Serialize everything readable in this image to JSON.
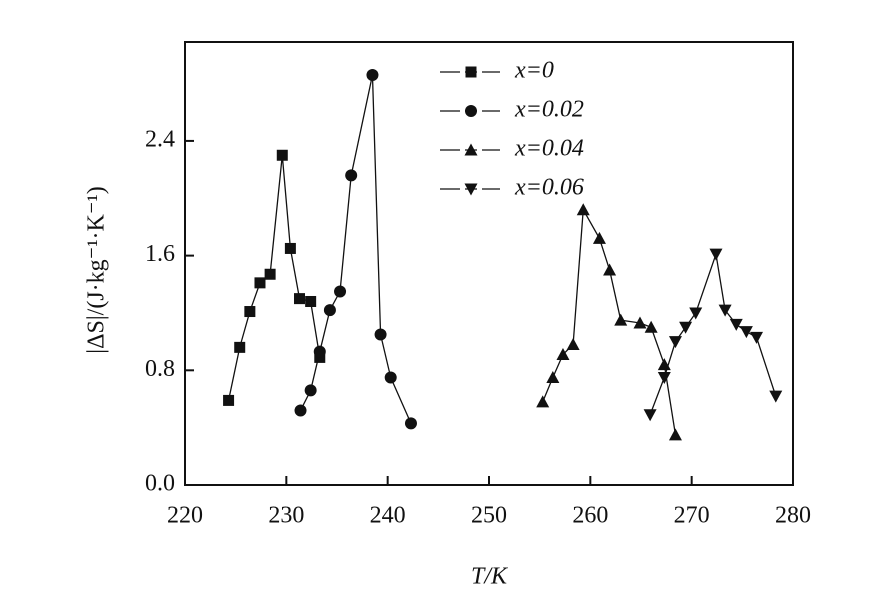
{
  "chart_data": {
    "type": "line",
    "xlabel": "T/K",
    "ylabel": "|ΔS|/(J·kg⁻¹·K⁻¹)",
    "xlim": [
      220,
      280
    ],
    "xticks": [
      220,
      230,
      240,
      250,
      260,
      270,
      280
    ],
    "ylim": [
      0,
      3.09
    ],
    "yticks": [
      {
        "value": 0,
        "label": "0.0"
      },
      0.8,
      1.6,
      2.4
    ],
    "legend": "upper center",
    "series": [
      {
        "name": "x=0",
        "color": "#111111",
        "marker": "square",
        "x": [
          224.3,
          225.4,
          226.4,
          227.4,
          228.4,
          229.6,
          230.4,
          231.3,
          232.4,
          233.3
        ],
        "values": [
          0.59,
          0.96,
          1.21,
          1.41,
          1.47,
          2.3,
          1.65,
          1.3,
          1.28,
          0.89
        ]
      },
      {
        "name": "x=0.02",
        "color": "#111111",
        "marker": "circle",
        "x": [
          231.4,
          232.4,
          233.3,
          234.3,
          235.3,
          236.4,
          238.5,
          239.3,
          240.3,
          242.3
        ],
        "values": [
          0.52,
          0.66,
          0.93,
          1.22,
          1.35,
          2.16,
          2.86,
          1.05,
          0.75,
          0.43
        ]
      },
      {
        "name": "x=0.04",
        "color": "#111111",
        "marker": "triangle-up",
        "x": [
          255.3,
          256.3,
          257.3,
          258.3,
          259.3,
          260.9,
          261.9,
          263.0,
          264.9,
          266.0,
          267.3,
          268.4
        ],
        "values": [
          0.58,
          0.75,
          0.91,
          0.98,
          1.92,
          1.72,
          1.5,
          1.15,
          1.13,
          1.1,
          0.84,
          0.35
        ]
      },
      {
        "name": "x=0.06",
        "color": "#111111",
        "marker": "triangle-down",
        "x": [
          265.9,
          267.3,
          268.4,
          269.4,
          270.4,
          272.4,
          273.3,
          274.4,
          275.4,
          276.4,
          278.3
        ],
        "values": [
          0.49,
          0.75,
          1.0,
          1.1,
          1.2,
          1.61,
          1.22,
          1.12,
          1.07,
          1.03,
          0.62
        ]
      }
    ]
  }
}
